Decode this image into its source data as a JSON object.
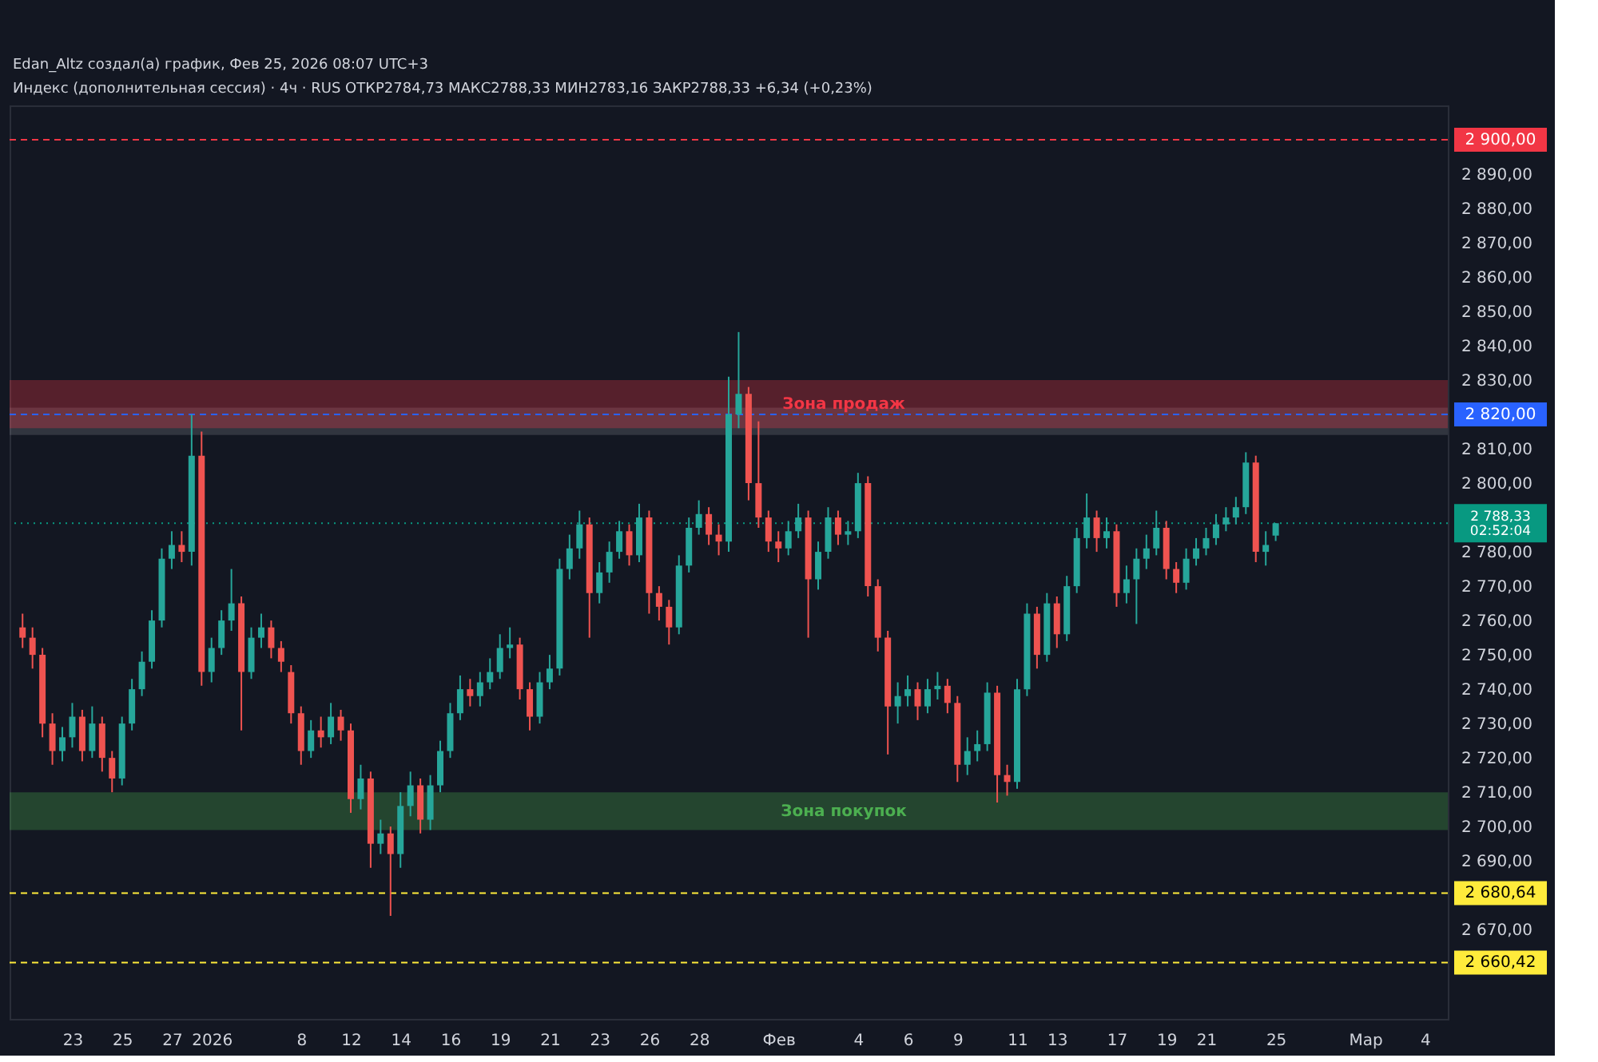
{
  "chart_data": {
    "type": "candlestick",
    "annotations": [
      "Edan_Altz создал(а) график, Фев 25, 2026 08:07 UTC+3",
      "Индекс (дополнительная сессия) · 4ч · RUS  ОТКР2784,73  МАКС2788,33  МИН2783,16  ЗАКР2788,33  +6,34 (+0,23%)"
    ],
    "categories": [
      null,
      null,
      null,
      null,
      null,
      "23",
      null,
      null,
      null,
      null,
      "25",
      null,
      null,
      null,
      null,
      "27",
      null,
      null,
      null,
      "2026",
      null,
      null,
      null,
      null,
      null,
      null,
      null,
      null,
      "8",
      null,
      null,
      null,
      null,
      "12",
      null,
      null,
      null,
      null,
      "14",
      null,
      null,
      null,
      null,
      "16",
      null,
      null,
      null,
      null,
      "19",
      null,
      null,
      null,
      null,
      "21",
      null,
      null,
      null,
      null,
      "23",
      null,
      null,
      null,
      null,
      "26",
      null,
      null,
      null,
      null,
      "28",
      null,
      null,
      null,
      null,
      null,
      null,
      null,
      "Фев",
      null,
      null,
      null,
      null,
      null,
      null,
      null,
      "4",
      null,
      null,
      null,
      null,
      "6",
      null,
      null,
      null,
      null,
      "9",
      null,
      null,
      null,
      null,
      null,
      "11",
      null,
      null,
      null,
      "13",
      null,
      null,
      null,
      null,
      null,
      "17",
      null,
      null,
      null,
      null,
      "19",
      null,
      null,
      null,
      "21",
      null,
      null,
      null,
      null,
      null,
      null,
      "25",
      null,
      null,
      null,
      null,
      null,
      null,
      null,
      null,
      "Мар",
      null,
      null,
      null,
      null,
      null,
      "4",
      null
    ],
    "ohlc": [
      [
        2758,
        2762,
        2752,
        2755
      ],
      [
        2755,
        2758,
        2746,
        2750
      ],
      [
        2750,
        2752,
        2726,
        2730
      ],
      [
        2730,
        2733,
        2718,
        2722
      ],
      [
        2722,
        2729,
        2719,
        2726
      ],
      [
        2726,
        2736,
        2723,
        2732
      ],
      [
        2732,
        2734,
        2719,
        2722
      ],
      [
        2722,
        2735,
        2720,
        2730
      ],
      [
        2730,
        2732,
        2716,
        2720
      ],
      [
        2720,
        2722,
        2710,
        2714
      ],
      [
        2714,
        2732,
        2712,
        2730
      ],
      [
        2730,
        2743,
        2728,
        2740
      ],
      [
        2740,
        2751,
        2738,
        2748
      ],
      [
        2748,
        2763,
        2746,
        2760
      ],
      [
        2760,
        2781,
        2758,
        2778
      ],
      [
        2778,
        2786,
        2775,
        2782
      ],
      [
        2782,
        2786,
        2777,
        2780
      ],
      [
        2780,
        2820,
        2776,
        2808
      ],
      [
        2808,
        2815,
        2741,
        2745
      ],
      [
        2745,
        2755,
        2742,
        2752
      ],
      [
        2752,
        2763,
        2750,
        2760
      ],
      [
        2760,
        2775,
        2757,
        2765
      ],
      [
        2765,
        2767,
        2728,
        2745
      ],
      [
        2745,
        2758,
        2743,
        2755
      ],
      [
        2755,
        2762,
        2752,
        2758
      ],
      [
        2758,
        2760,
        2749,
        2752
      ],
      [
        2752,
        2754,
        2745,
        2748
      ],
      [
        2745,
        2747,
        2730,
        2733
      ],
      [
        2733,
        2735,
        2718,
        2722
      ],
      [
        2722,
        2731,
        2720,
        2728
      ],
      [
        2728,
        2732,
        2723,
        2726
      ],
      [
        2726,
        2736,
        2724,
        2732
      ],
      [
        2732,
        2734,
        2725,
        2728
      ],
      [
        2728,
        2730,
        2704,
        2708
      ],
      [
        2708,
        2718,
        2705,
        2714
      ],
      [
        2714,
        2716,
        2688,
        2695
      ],
      [
        2695,
        2702,
        2692,
        2698
      ],
      [
        2698,
        2700,
        2674,
        2692
      ],
      [
        2692,
        2710,
        2688,
        2706
      ],
      [
        2706,
        2716,
        2703,
        2712
      ],
      [
        2712,
        2714,
        2698,
        2702
      ],
      [
        2702,
        2715,
        2699,
        2712
      ],
      [
        2712,
        2725,
        2710,
        2722
      ],
      [
        2722,
        2736,
        2720,
        2733
      ],
      [
        2733,
        2744,
        2731,
        2740
      ],
      [
        2740,
        2743,
        2735,
        2738
      ],
      [
        2738,
        2745,
        2735,
        2742
      ],
      [
        2742,
        2749,
        2740,
        2745
      ],
      [
        2745,
        2756,
        2743,
        2752
      ],
      [
        2752,
        2758,
        2749,
        2753
      ],
      [
        2753,
        2755,
        2737,
        2740
      ],
      [
        2740,
        2742,
        2728,
        2732
      ],
      [
        2732,
        2745,
        2730,
        2742
      ],
      [
        2742,
        2750,
        2740,
        2746
      ],
      [
        2746,
        2778,
        2744,
        2775
      ],
      [
        2775,
        2785,
        2772,
        2781
      ],
      [
        2781,
        2792,
        2778,
        2788
      ],
      [
        2788,
        2790,
        2755,
        2768
      ],
      [
        2768,
        2777,
        2765,
        2774
      ],
      [
        2774,
        2783,
        2771,
        2780
      ],
      [
        2780,
        2789,
        2778,
        2786
      ],
      [
        2786,
        2788,
        2776,
        2779
      ],
      [
        2779,
        2794,
        2777,
        2790
      ],
      [
        2790,
        2792,
        2762,
        2768
      ],
      [
        2768,
        2770,
        2760,
        2764
      ],
      [
        2764,
        2766,
        2753,
        2758
      ],
      [
        2758,
        2779,
        2756,
        2776
      ],
      [
        2776,
        2790,
        2774,
        2787
      ],
      [
        2787,
        2795,
        2785,
        2791
      ],
      [
        2791,
        2793,
        2782,
        2785
      ],
      [
        2785,
        2788,
        2779,
        2783
      ],
      [
        2783,
        2831,
        2780,
        2820
      ],
      [
        2820,
        2844,
        2816,
        2826
      ],
      [
        2826,
        2828,
        2795,
        2800
      ],
      [
        2800,
        2818,
        2787,
        2790
      ],
      [
        2790,
        2792,
        2780,
        2783
      ],
      [
        2783,
        2786,
        2777,
        2781
      ],
      [
        2781,
        2789,
        2779,
        2786
      ],
      [
        2786,
        2794,
        2784,
        2790
      ],
      [
        2790,
        2792,
        2755,
        2772
      ],
      [
        2772,
        2783,
        2769,
        2780
      ],
      [
        2780,
        2793,
        2778,
        2790
      ],
      [
        2790,
        2792,
        2782,
        2785
      ],
      [
        2785,
        2789,
        2782,
        2786
      ],
      [
        2786,
        2803,
        2784,
        2800
      ],
      [
        2800,
        2802,
        2767,
        2770
      ],
      [
        2770,
        2772,
        2751,
        2755
      ],
      [
        2755,
        2757,
        2721,
        2735
      ],
      [
        2735,
        2742,
        2730,
        2738
      ],
      [
        2738,
        2744,
        2735,
        2740
      ],
      [
        2740,
        2742,
        2731,
        2735
      ],
      [
        2735,
        2743,
        2733,
        2740
      ],
      [
        2740,
        2745,
        2737,
        2741
      ],
      [
        2741,
        2743,
        2733,
        2736
      ],
      [
        2736,
        2738,
        2713,
        2718
      ],
      [
        2718,
        2726,
        2715,
        2722
      ],
      [
        2722,
        2728,
        2719,
        2724
      ],
      [
        2724,
        2742,
        2722,
        2739
      ],
      [
        2739,
        2741,
        2707,
        2715
      ],
      [
        2715,
        2718,
        2709,
        2713
      ],
      [
        2713,
        2743,
        2711,
        2740
      ],
      [
        2740,
        2765,
        2738,
        2762
      ],
      [
        2762,
        2764,
        2746,
        2750
      ],
      [
        2750,
        2768,
        2748,
        2765
      ],
      [
        2765,
        2767,
        2752,
        2756
      ],
      [
        2756,
        2773,
        2754,
        2770
      ],
      [
        2770,
        2787,
        2768,
        2784
      ],
      [
        2784,
        2797,
        2781,
        2790
      ],
      [
        2790,
        2792,
        2780,
        2784
      ],
      [
        2784,
        2790,
        2781,
        2786
      ],
      [
        2786,
        2788,
        2764,
        2768
      ],
      [
        2768,
        2776,
        2765,
        2772
      ],
      [
        2772,
        2781,
        2759,
        2778
      ],
      [
        2778,
        2785,
        2775,
        2781
      ],
      [
        2781,
        2792,
        2779,
        2787
      ],
      [
        2787,
        2789,
        2772,
        2775
      ],
      [
        2775,
        2777,
        2768,
        2771
      ],
      [
        2771,
        2781,
        2769,
        2778
      ],
      [
        2778,
        2784,
        2776,
        2781
      ],
      [
        2781,
        2787,
        2779,
        2784
      ],
      [
        2784,
        2791,
        2782,
        2788
      ],
      [
        2788,
        2793,
        2786,
        2790
      ],
      [
        2790,
        2796,
        2788,
        2793
      ],
      [
        2793,
        2809,
        2791,
        2806
      ],
      [
        2806,
        2808,
        2777,
        2780
      ],
      [
        2780,
        2786,
        2776,
        2782
      ],
      [
        2784.73,
        2788.33,
        2783.16,
        2788.33
      ],
      null,
      null,
      null,
      null,
      null,
      null,
      null,
      null,
      null,
      null,
      null,
      null,
      null,
      null,
      null,
      null
    ],
    "ylim": [
      2644,
      2910
    ],
    "yticks": [
      {
        "value": 2670,
        "label": "2 670,00"
      },
      {
        "value": 2690,
        "label": "2 690,00"
      },
      {
        "value": 2700,
        "label": "2 700,00"
      },
      {
        "value": 2710,
        "label": "2 710,00"
      },
      {
        "value": 2720,
        "label": "2 720,00"
      },
      {
        "value": 2730,
        "label": "2 730,00"
      },
      {
        "value": 2740,
        "label": "2 740,00"
      },
      {
        "value": 2750,
        "label": "2 750,00"
      },
      {
        "value": 2760,
        "label": "2 760,00"
      },
      {
        "value": 2770,
        "label": "2 770,00"
      },
      {
        "value": 2780,
        "label": "2 780,00"
      },
      {
        "value": 2800,
        "label": "2 800,00"
      },
      {
        "value": 2810,
        "label": "2 810,00"
      },
      {
        "value": 2830,
        "label": "2 830,00"
      },
      {
        "value": 2840,
        "label": "2 840,00"
      },
      {
        "value": 2850,
        "label": "2 850,00"
      },
      {
        "value": 2860,
        "label": "2 860,00"
      },
      {
        "value": 2870,
        "label": "2 870,00"
      },
      {
        "value": 2880,
        "label": "2 880,00"
      },
      {
        "value": 2890,
        "label": "2 890,00"
      }
    ],
    "ref_lines": [
      {
        "axis": "y",
        "value": 2900,
        "label": "2 900,00",
        "color": "#f23645",
        "line_style": "dashed"
      },
      {
        "axis": "y",
        "value": 2820,
        "label": "2 820,00",
        "color": "#2962ff",
        "line_style": "dashed"
      },
      {
        "axis": "y",
        "value": 2788.33,
        "label": "2 788,33\n02:52:04",
        "color": "#089981",
        "line_style": "dotted"
      },
      {
        "axis": "y",
        "value": 2680.64,
        "label": "2 680,64",
        "color": "#ffeb3b",
        "line_style": "dashed"
      },
      {
        "axis": "y",
        "value": 2660.42,
        "label": "2 660,42",
        "color": "#ffeb3b",
        "line_style": "dashed"
      }
    ],
    "bands": [
      {
        "axis": "y",
        "from": 2814,
        "to": 2822,
        "color": "#787b86"
      },
      {
        "axis": "y",
        "from": 2816,
        "to": 2830,
        "label": "Зона продаж",
        "color": "#f23645"
      },
      {
        "axis": "y",
        "from": 2699,
        "to": 2710,
        "label": "Зона покупок",
        "color": "#4caf50"
      }
    ],
    "grid": false
  }
}
